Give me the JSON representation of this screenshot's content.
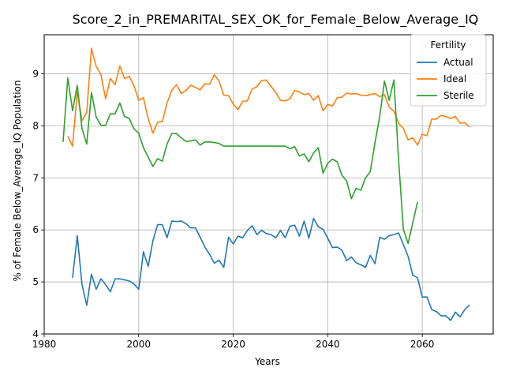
{
  "chart_data": {
    "type": "line",
    "title": "Score_2_in_PREMARITAL_SEX_OK_for_Female_Below_Average_IQ",
    "xlabel": "Years",
    "ylabel": "% of Female Below_Average_IQ Population",
    "xlim": [
      1980,
      2075
    ],
    "ylim": [
      4,
      9.75
    ],
    "xticks": [
      1980,
      2000,
      2020,
      2040,
      2060
    ],
    "yticks": [
      4,
      5,
      6,
      7,
      8,
      9
    ],
    "grid": true,
    "legend": {
      "title": "Fertility",
      "placement": "top-right"
    },
    "series": [
      {
        "name": "Actual",
        "color": "#1f77b4",
        "points": [
          [
            1986,
            5.08
          ],
          [
            1987,
            5.89
          ],
          [
            1988,
            4.95
          ],
          [
            1989,
            4.55
          ],
          [
            1990,
            5.15
          ],
          [
            1991,
            4.86
          ],
          [
            1992,
            5.06
          ],
          [
            1993,
            4.95
          ],
          [
            1994,
            4.81
          ],
          [
            1995,
            5.06
          ],
          [
            1996,
            5.06
          ],
          [
            1997,
            5.04
          ],
          [
            1998,
            5.02
          ],
          [
            1999,
            4.96
          ],
          [
            2000,
            4.86
          ],
          [
            2001,
            5.58
          ],
          [
            2002,
            5.3
          ],
          [
            2003,
            5.79
          ],
          [
            2004,
            6.1
          ],
          [
            2005,
            6.1
          ],
          [
            2006,
            5.85
          ],
          [
            2007,
            6.17
          ],
          [
            2008,
            6.16
          ],
          [
            2009,
            6.17
          ],
          [
            2010,
            6.12
          ],
          [
            2011,
            6.04
          ],
          [
            2012,
            6.04
          ],
          [
            2013,
            5.86
          ],
          [
            2014,
            5.67
          ],
          [
            2015,
            5.53
          ],
          [
            2016,
            5.36
          ],
          [
            2017,
            5.42
          ],
          [
            2018,
            5.28
          ],
          [
            2019,
            5.86
          ],
          [
            2020,
            5.73
          ],
          [
            2021,
            5.88
          ],
          [
            2022,
            5.85
          ],
          [
            2023,
            5.99
          ],
          [
            2024,
            6.08
          ],
          [
            2025,
            5.91
          ],
          [
            2026,
            5.99
          ],
          [
            2027,
            5.93
          ],
          [
            2028,
            5.91
          ],
          [
            2029,
            5.85
          ],
          [
            2030,
            5.99
          ],
          [
            2031,
            5.85
          ],
          [
            2032,
            6.07
          ],
          [
            2033,
            6.09
          ],
          [
            2034,
            5.88
          ],
          [
            2035,
            6.17
          ],
          [
            2036,
            5.84
          ],
          [
            2037,
            6.22
          ],
          [
            2038,
            6.06
          ],
          [
            2039,
            6.01
          ],
          [
            2040,
            5.84
          ],
          [
            2041,
            5.66
          ],
          [
            2042,
            5.67
          ],
          [
            2043,
            5.61
          ],
          [
            2044,
            5.41
          ],
          [
            2045,
            5.48
          ],
          [
            2046,
            5.37
          ],
          [
            2047,
            5.33
          ],
          [
            2048,
            5.28
          ],
          [
            2049,
            5.51
          ],
          [
            2050,
            5.35
          ],
          [
            2051,
            5.86
          ],
          [
            2052,
            5.82
          ],
          [
            2053,
            5.89
          ],
          [
            2054,
            5.91
          ],
          [
            2055,
            5.94
          ],
          [
            2056,
            5.72
          ],
          [
            2057,
            5.49
          ],
          [
            2058,
            5.13
          ],
          [
            2059,
            5.08
          ],
          [
            2060,
            4.71
          ],
          [
            2061,
            4.71
          ],
          [
            2062,
            4.47
          ],
          [
            2063,
            4.43
          ],
          [
            2064,
            4.35
          ],
          [
            2065,
            4.35
          ],
          [
            2066,
            4.26
          ],
          [
            2067,
            4.42
          ],
          [
            2068,
            4.33
          ],
          [
            2069,
            4.47
          ],
          [
            2070,
            4.56
          ]
        ]
      },
      {
        "name": "Ideal",
        "color": "#ff7f0e",
        "points": [
          [
            1985,
            7.8
          ],
          [
            1986,
            7.61
          ],
          [
            1987,
            8.65
          ],
          [
            1988,
            8.1
          ],
          [
            1989,
            8.25
          ],
          [
            1990,
            9.49
          ],
          [
            1991,
            9.14
          ],
          [
            1992,
            8.99
          ],
          [
            1993,
            8.52
          ],
          [
            1994,
            8.91
          ],
          [
            1995,
            8.79
          ],
          [
            1996,
            9.15
          ],
          [
            1997,
            8.91
          ],
          [
            1998,
            8.95
          ],
          [
            1999,
            8.77
          ],
          [
            2000,
            8.49
          ],
          [
            2001,
            8.54
          ],
          [
            2002,
            8.14
          ],
          [
            2003,
            7.86
          ],
          [
            2004,
            8.07
          ],
          [
            2005,
            8.08
          ],
          [
            2006,
            8.44
          ],
          [
            2007,
            8.68
          ],
          [
            2008,
            8.79
          ],
          [
            2009,
            8.62
          ],
          [
            2010,
            8.68
          ],
          [
            2011,
            8.78
          ],
          [
            2012,
            8.74
          ],
          [
            2013,
            8.69
          ],
          [
            2014,
            8.81
          ],
          [
            2015,
            8.8
          ],
          [
            2016,
            8.98
          ],
          [
            2017,
            8.86
          ],
          [
            2018,
            8.59
          ],
          [
            2019,
            8.58
          ],
          [
            2020,
            8.42
          ],
          [
            2021,
            8.31
          ],
          [
            2022,
            8.47
          ],
          [
            2023,
            8.48
          ],
          [
            2024,
            8.71
          ],
          [
            2025,
            8.75
          ],
          [
            2026,
            8.87
          ],
          [
            2027,
            8.88
          ],
          [
            2028,
            8.76
          ],
          [
            2029,
            8.64
          ],
          [
            2030,
            8.49
          ],
          [
            2031,
            8.48
          ],
          [
            2032,
            8.52
          ],
          [
            2033,
            8.68
          ],
          [
            2034,
            8.65
          ],
          [
            2035,
            8.6
          ],
          [
            2036,
            8.62
          ],
          [
            2037,
            8.49
          ],
          [
            2038,
            8.58
          ],
          [
            2039,
            8.29
          ],
          [
            2040,
            8.41
          ],
          [
            2041,
            8.38
          ],
          [
            2042,
            8.54
          ],
          [
            2043,
            8.55
          ],
          [
            2044,
            8.63
          ],
          [
            2045,
            8.61
          ],
          [
            2046,
            8.62
          ],
          [
            2047,
            8.59
          ],
          [
            2048,
            8.58
          ],
          [
            2049,
            8.6
          ],
          [
            2050,
            8.62
          ],
          [
            2051,
            8.56
          ],
          [
            2052,
            8.6
          ],
          [
            2053,
            8.36
          ],
          [
            2054,
            8.28
          ],
          [
            2055,
            8.05
          ],
          [
            2056,
            7.95
          ],
          [
            2057,
            7.73
          ],
          [
            2058,
            7.77
          ],
          [
            2059,
            7.63
          ],
          [
            2060,
            7.84
          ],
          [
            2061,
            7.81
          ],
          [
            2062,
            8.13
          ],
          [
            2063,
            8.13
          ],
          [
            2064,
            8.2
          ],
          [
            2065,
            8.18
          ],
          [
            2066,
            8.14
          ],
          [
            2067,
            8.18
          ],
          [
            2068,
            8.05
          ],
          [
            2069,
            8.06
          ],
          [
            2070,
            7.98
          ]
        ]
      },
      {
        "name": "Sterile",
        "color": "#2ca02c",
        "points": [
          [
            1984,
            7.69
          ],
          [
            1985,
            8.92
          ],
          [
            1986,
            8.29
          ],
          [
            1987,
            8.78
          ],
          [
            1988,
            7.95
          ],
          [
            1989,
            7.65
          ],
          [
            1990,
            8.64
          ],
          [
            1991,
            8.17
          ],
          [
            1992,
            8.01
          ],
          [
            1993,
            8.01
          ],
          [
            1994,
            8.23
          ],
          [
            1995,
            8.23
          ],
          [
            1996,
            8.44
          ],
          [
            1997,
            8.18
          ],
          [
            1998,
            8.14
          ],
          [
            1999,
            7.94
          ],
          [
            2000,
            7.86
          ],
          [
            2001,
            7.58
          ],
          [
            2002,
            7.4
          ],
          [
            2003,
            7.22
          ],
          [
            2004,
            7.37
          ],
          [
            2005,
            7.32
          ],
          [
            2006,
            7.65
          ],
          [
            2007,
            7.85
          ],
          [
            2008,
            7.85
          ],
          [
            2009,
            7.77
          ],
          [
            2010,
            7.7
          ],
          [
            2011,
            7.71
          ],
          [
            2012,
            7.73
          ],
          [
            2013,
            7.63
          ],
          [
            2014,
            7.69
          ],
          [
            2015,
            7.69
          ],
          [
            2016,
            7.68
          ],
          [
            2017,
            7.66
          ],
          [
            2018,
            7.61
          ],
          [
            2019,
            7.61
          ],
          [
            2020,
            7.61
          ],
          [
            2021,
            7.61
          ],
          [
            2022,
            7.61
          ],
          [
            2023,
            7.61
          ],
          [
            2024,
            7.61
          ],
          [
            2025,
            7.61
          ],
          [
            2026,
            7.61
          ],
          [
            2027,
            7.61
          ],
          [
            2028,
            7.61
          ],
          [
            2029,
            7.61
          ],
          [
            2030,
            7.61
          ],
          [
            2031,
            7.61
          ],
          [
            2032,
            7.56
          ],
          [
            2033,
            7.6
          ],
          [
            2034,
            7.42
          ],
          [
            2035,
            7.46
          ],
          [
            2036,
            7.31
          ],
          [
            2037,
            7.48
          ],
          [
            2038,
            7.58
          ],
          [
            2039,
            7.09
          ],
          [
            2040,
            7.28
          ],
          [
            2041,
            7.36
          ],
          [
            2042,
            7.31
          ],
          [
            2043,
            7.05
          ],
          [
            2044,
            6.94
          ],
          [
            2045,
            6.6
          ],
          [
            2046,
            6.8
          ],
          [
            2047,
            6.76
          ],
          [
            2048,
            7.0
          ],
          [
            2049,
            7.12
          ],
          [
            2050,
            7.68
          ],
          [
            2051,
            8.18
          ],
          [
            2052,
            8.86
          ],
          [
            2053,
            8.49
          ],
          [
            2054,
            8.88
          ],
          [
            2055,
            7.33
          ],
          [
            2056,
            6.01
          ],
          [
            2057,
            5.74
          ],
          [
            2058,
            6.14
          ],
          [
            2059,
            6.54
          ]
        ]
      }
    ]
  }
}
